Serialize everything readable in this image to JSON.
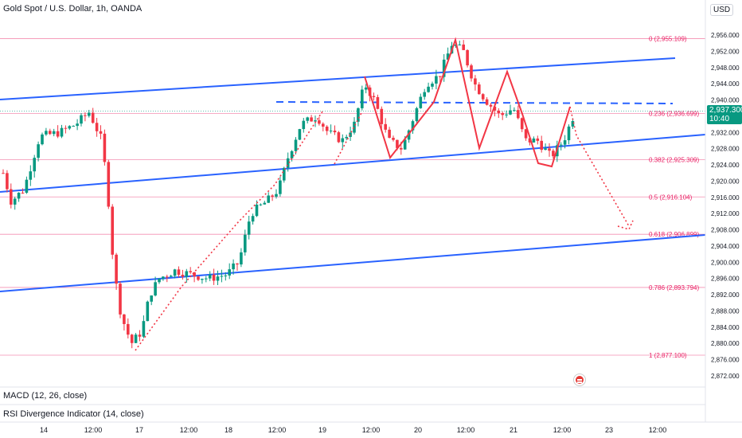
{
  "header": {
    "title": "Gold Spot / U.S. Dollar, 1h, OANDA",
    "currency": "USD"
  },
  "price_badge": {
    "price": "2,937.300",
    "countdown": "10:40"
  },
  "indicators": {
    "macd": "MACD (12, 26, close)",
    "rsi": "RSI Divergence Indicator (14, close)"
  },
  "chart_data": {
    "type": "candlestick",
    "y_axis": {
      "range": [
        2870,
        2958
      ],
      "ticks": [
        2872,
        2876,
        2880,
        2884,
        2888,
        2892,
        2896,
        2900,
        2904,
        2908,
        2912,
        2916,
        2920,
        2924,
        2928,
        2932,
        2936,
        2940,
        2944,
        2948,
        2952,
        2956
      ],
      "tick_labels": [
        "2,872.000",
        "2,876.000",
        "2,880.000",
        "2,884.000",
        "2,888.000",
        "2,892.000",
        "2,896.000",
        "2,900.000",
        "2,904.000",
        "2,908.000",
        "2,912.000",
        "2,916.000",
        "2,920.000",
        "2,924.000",
        "2,928.000",
        "2,932.000",
        "2,936.000",
        "2,940.000",
        "2,944.000",
        "2,948.000",
        "2,952.000",
        "2,956.000"
      ]
    },
    "x_axis": {
      "tick_labels": [
        "14",
        "12:00",
        "17",
        "12:00",
        "18",
        "12:00",
        "19",
        "12:00",
        "20",
        "12:00",
        "21",
        "12:00",
        "23",
        "12:00"
      ]
    },
    "fibonacci": [
      {
        "label": "0 (2,955.109)",
        "price": 2955.109
      },
      {
        "label": "0.236 (2,936.699)",
        "price": 2936.699
      },
      {
        "label": "0.382 (2,925.309)",
        "price": 2925.309
      },
      {
        "label": "0.5 (2,916.104)",
        "price": 2916.104
      },
      {
        "label": "0.618 (2,906.899)",
        "price": 2906.899
      },
      {
        "label": "0.786 (2,893.794)",
        "price": 2893.794
      },
      {
        "label": "1 (2,877.100)",
        "price": 2877.1
      }
    ],
    "last_price": 2937.3,
    "colors": {
      "up": "#089981",
      "down": "#f23645",
      "fib": "#f48fb1",
      "trend": "#2962ff"
    }
  }
}
